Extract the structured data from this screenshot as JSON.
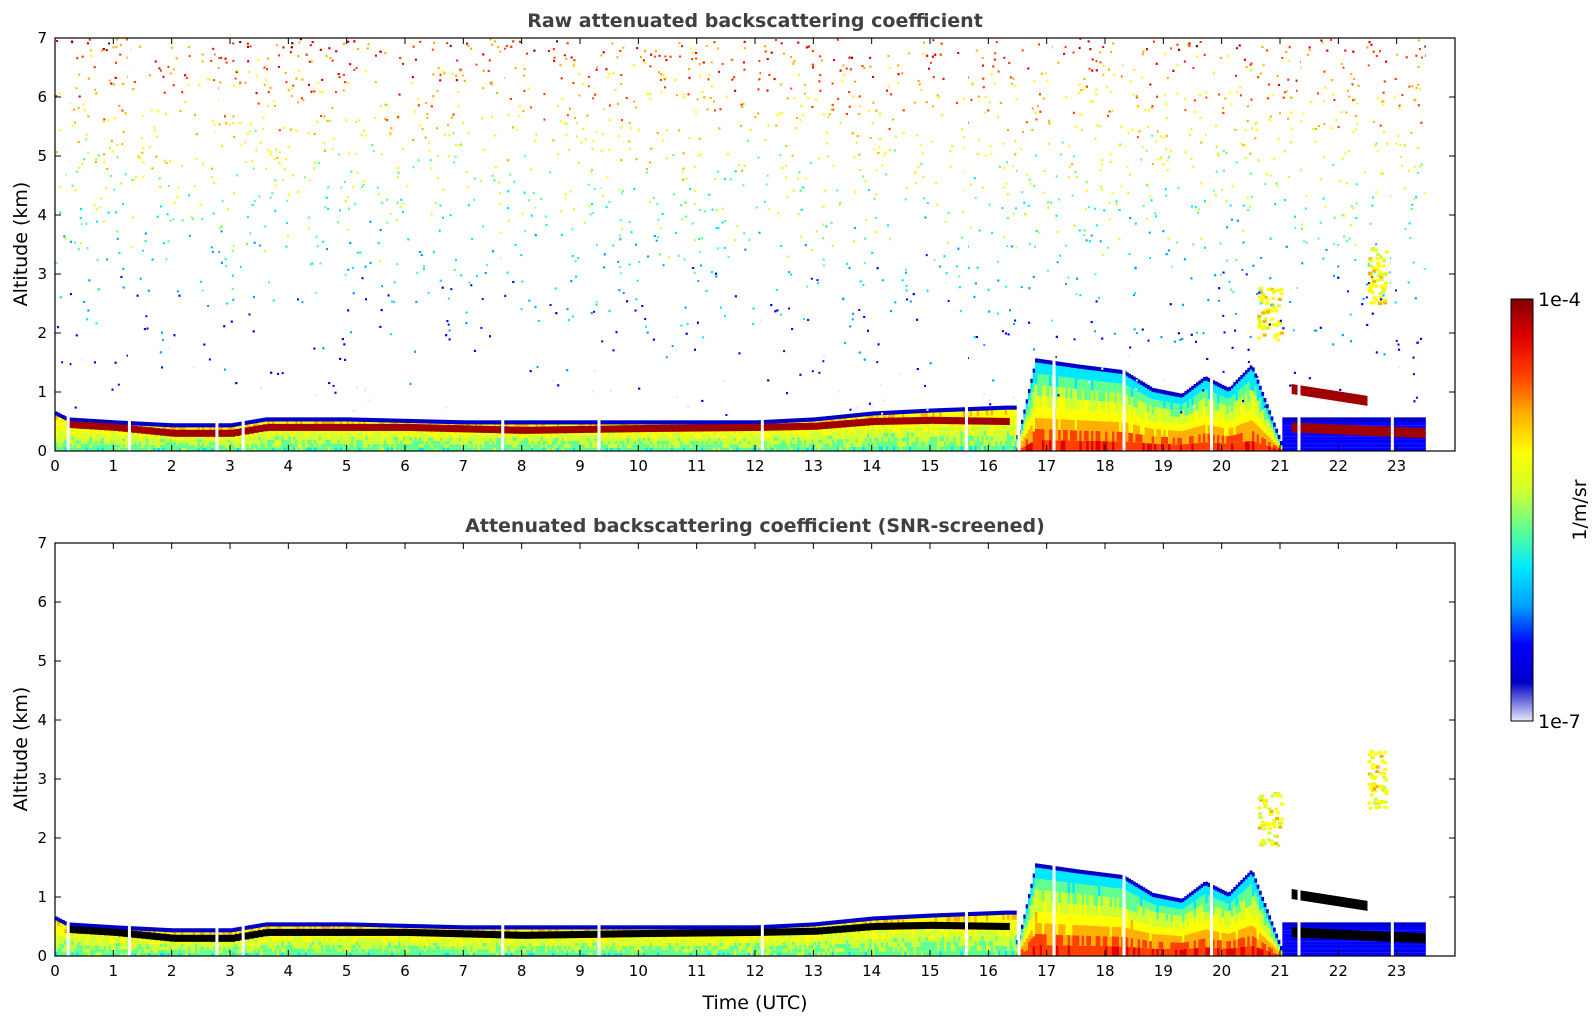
{
  "chart_data": [
    {
      "type": "heatmap",
      "title": "Raw attenuated backscattering coefficient",
      "xlabel": "",
      "ylabel": "Altitude (km)",
      "xlim": [
        0,
        24
      ],
      "ylim": [
        0,
        7
      ],
      "x_ticks": [
        0,
        1,
        2,
        3,
        4,
        5,
        6,
        7,
        8,
        9,
        10,
        11,
        12,
        13,
        14,
        15,
        16,
        17,
        18,
        19,
        20,
        21,
        22,
        23
      ],
      "y_ticks": [
        0,
        1,
        2,
        3,
        4,
        5,
        6,
        7
      ],
      "data_end_time": 23.5,
      "screened": false,
      "features": {
        "boundary_layer_top_km": [
          [
            0.0,
            0.6
          ],
          [
            0.2,
            0.5
          ],
          [
            1.0,
            0.45
          ],
          [
            2.0,
            0.4
          ],
          [
            3.0,
            0.4
          ],
          [
            3.6,
            0.5
          ],
          [
            5.0,
            0.5
          ],
          [
            7.0,
            0.45
          ],
          [
            8.0,
            0.45
          ],
          [
            10.0,
            0.45
          ],
          [
            12.0,
            0.45
          ],
          [
            13.0,
            0.5
          ],
          [
            14.0,
            0.6
          ],
          [
            15.0,
            0.65
          ],
          [
            16.3,
            0.7
          ]
        ],
        "dense_aerosol_layer_km": [
          [
            0.2,
            0.45
          ],
          [
            1.0,
            0.4
          ],
          [
            2.0,
            0.3
          ],
          [
            3.0,
            0.3
          ],
          [
            3.6,
            0.4
          ],
          [
            6.0,
            0.4
          ],
          [
            8.0,
            0.35
          ],
          [
            10.0,
            0.38
          ],
          [
            12.0,
            0.4
          ],
          [
            13.0,
            0.42
          ],
          [
            14.0,
            0.5
          ],
          [
            15.0,
            0.52
          ],
          [
            16.3,
            0.5
          ]
        ],
        "convective_mixed_layer_km": [
          [
            16.5,
            0.2
          ],
          [
            16.8,
            1.5
          ],
          [
            17.5,
            1.4
          ],
          [
            18.3,
            1.3
          ],
          [
            18.8,
            1.0
          ],
          [
            19.3,
            0.9
          ],
          [
            19.7,
            1.2
          ],
          [
            20.1,
            1.0
          ],
          [
            20.5,
            1.4
          ],
          [
            21.0,
            0.1
          ]
        ],
        "elevated_cloud_layers": [
          {
            "t_start": 21.2,
            "t_end": 22.5,
            "alt_start_km": 1.05,
            "alt_end_km": 0.85
          },
          {
            "t_start": 21.2,
            "t_end": 23.5,
            "alt_start_km": 0.4,
            "alt_end_km": 0.3
          }
        ],
        "upper_aerosol_patches": [
          {
            "t_start": 20.6,
            "t_end": 21.0,
            "alt_min_km": 1.9,
            "alt_max_km": 2.8
          },
          {
            "t_start": 22.5,
            "t_end": 22.8,
            "alt_min_km": 2.5,
            "alt_max_km": 3.5
          }
        ]
      }
    },
    {
      "type": "heatmap",
      "title": "Attenuated backscattering coefficient (SNR-screened)",
      "xlabel": "Time (UTC)",
      "ylabel": "Altitude (km)",
      "xlim": [
        0,
        24
      ],
      "ylim": [
        0,
        7
      ],
      "x_ticks": [
        0,
        1,
        2,
        3,
        4,
        5,
        6,
        7,
        8,
        9,
        10,
        11,
        12,
        13,
        14,
        15,
        16,
        17,
        18,
        19,
        20,
        21,
        22,
        23
      ],
      "y_ticks": [
        0,
        1,
        2,
        3,
        4,
        5,
        6,
        7
      ],
      "data_end_time": 23.5,
      "screened": true
    }
  ],
  "colorbar": {
    "label": "1/m/sr",
    "max_label": "1e-4",
    "min_label": "1e-7",
    "scale": "log",
    "colors": [
      "#e8e8f8",
      "#0000c8",
      "#0000ff",
      "#00a0ff",
      "#00e8ff",
      "#60ff90",
      "#d0ff30",
      "#ffff00",
      "#ffb000",
      "#ff4000",
      "#e00000",
      "#800000"
    ]
  }
}
